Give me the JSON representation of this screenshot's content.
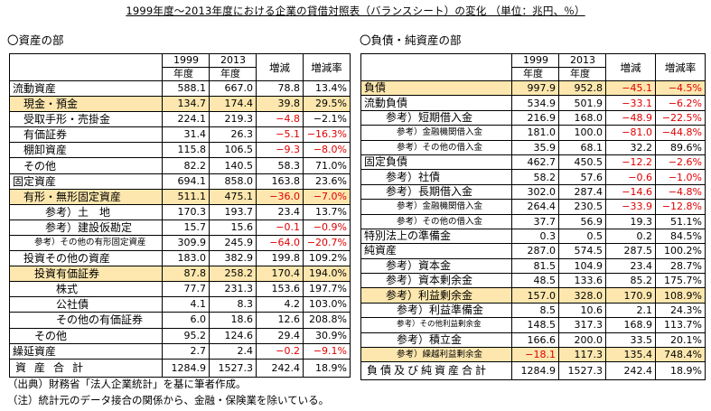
{
  "title": "1999年度～2013年度における企業の貸借対照表（バランスシート）の変化 （単位：兆円、％）",
  "left": {
    "section_title": "〇資産の部",
    "header": {
      "col1_line1": "1999",
      "col1_line2": "年度",
      "col2_line1": "2013",
      "col2_line2": "年度",
      "col3": "増減",
      "col4": "増減率"
    },
    "rows": [
      {
        "label": "流動資産",
        "indent": 0,
        "v1": "588.1",
        "v2": "667.0",
        "v3": "78.8",
        "v4": "13.4%",
        "hl": false
      },
      {
        "label": "現金・預金",
        "indent": 1,
        "v1": "134.7",
        "v2": "174.4",
        "v3": "39.8",
        "v4": "29.5%",
        "hl": true
      },
      {
        "label": "受取手形・売掛金",
        "indent": 1,
        "v1": "224.1",
        "v2": "219.3",
        "v3": "−4.8",
        "v4": "−2.1%",
        "hl": false,
        "neg3": true
      },
      {
        "label": "有価証券",
        "indent": 1,
        "v1": "31.4",
        "v2": "26.3",
        "v3": "−5.1",
        "v4": "−16.3%",
        "hl": false,
        "neg3": true,
        "neg4": true
      },
      {
        "label": "棚卸資産",
        "indent": 1,
        "v1": "115.8",
        "v2": "106.5",
        "v3": "−9.3",
        "v4": "−8.0%",
        "hl": false,
        "neg3": true,
        "neg4": true
      },
      {
        "label": "その他",
        "indent": 1,
        "v1": "82.2",
        "v2": "140.5",
        "v3": "58.3",
        "v4": "71.0%",
        "hl": false
      },
      {
        "label": "固定資産",
        "indent": 0,
        "v1": "694.1",
        "v2": "858.0",
        "v3": "163.8",
        "v4": "23.6%",
        "hl": false
      },
      {
        "label": "有形・無形固定資産",
        "indent": 1,
        "v1": "511.1",
        "v2": "475.1",
        "v3": "−36.0",
        "v4": "−7.0%",
        "hl": true,
        "neg3": true,
        "neg4": true
      },
      {
        "label": "参考）土　地",
        "indent": 3,
        "v1": "170.3",
        "v2": "193.7",
        "v3": "23.4",
        "v4": "13.7%",
        "hl": false
      },
      {
        "label": "参考）建設仮勘定",
        "indent": 3,
        "v1": "15.7",
        "v2": "15.6",
        "v3": "−0.1",
        "v4": "−0.9%",
        "hl": false,
        "neg3": true,
        "neg4": true
      },
      {
        "label": "参考）その他の有形固定資産",
        "indent": 2,
        "v1": "309.9",
        "v2": "245.9",
        "v3": "−64.0",
        "v4": "−20.7%",
        "hl": false,
        "neg3": true,
        "neg4": true,
        "small": true
      },
      {
        "label": "投資その他の資産",
        "indent": 1,
        "v1": "183.0",
        "v2": "382.9",
        "v3": "199.8",
        "v4": "109.2%",
        "hl": false
      },
      {
        "label": "投資有価証券",
        "indent": 2,
        "v1": "87.8",
        "v2": "258.2",
        "v3": "170.4",
        "v4": "194.0%",
        "hl": true
      },
      {
        "label": "株式",
        "indent": 4,
        "v1": "77.7",
        "v2": "231.3",
        "v3": "153.6",
        "v4": "197.7%",
        "hl": false
      },
      {
        "label": "公社債",
        "indent": 4,
        "v1": "4.1",
        "v2": "8.3",
        "v3": "4.2",
        "v4": "103.0%",
        "hl": false
      },
      {
        "label": "その他の有価証券",
        "indent": 4,
        "v1": "6.0",
        "v2": "18.6",
        "v3": "12.6",
        "v4": "208.8%",
        "hl": false
      },
      {
        "label": "その他",
        "indent": 2,
        "v1": "95.2",
        "v2": "124.6",
        "v3": "29.4",
        "v4": "30.9%",
        "hl": false
      },
      {
        "label": "繰延資産",
        "indent": 0,
        "v1": "2.7",
        "v2": "2.4",
        "v3": "−0.2",
        "v4": "−9.1%",
        "hl": false,
        "neg3": true,
        "neg4": true
      }
    ],
    "total": {
      "label": "資産合計",
      "v1": "1284.9",
      "v2": "1527.3",
      "v3": "242.4",
      "v4": "18.9%"
    }
  },
  "right": {
    "section_title": "〇負債・純資産の部",
    "header": {
      "col1_line1": "1999",
      "col1_line2": "年度",
      "col2_line1": "2013",
      "col2_line2": "年度",
      "col3": "増減",
      "col4": "増減率"
    },
    "rows": [
      {
        "label": "負債",
        "indent": 0,
        "v1": "997.9",
        "v2": "952.8",
        "v3": "−45.1",
        "v4": "−4.5%",
        "hl": true,
        "neg3": true,
        "neg4": true
      },
      {
        "label": "流動負債",
        "indent": 0,
        "v1": "534.9",
        "v2": "501.9",
        "v3": "−33.1",
        "v4": "−6.2%",
        "hl": false,
        "neg3": true,
        "neg4": true
      },
      {
        "label": "参考）短期借入金",
        "indent": 2,
        "v1": "216.9",
        "v2": "168.0",
        "v3": "−48.9",
        "v4": "−22.5%",
        "hl": false,
        "neg3": true,
        "neg4": true
      },
      {
        "label": "参考）金融機関借入金",
        "indent": 3,
        "v1": "181.0",
        "v2": "100.0",
        "v3": "−81.0",
        "v4": "−44.8%",
        "hl": false,
        "neg3": true,
        "neg4": true,
        "small": true
      },
      {
        "label": "参考）その他の借入金",
        "indent": 3,
        "v1": "35.9",
        "v2": "68.1",
        "v3": "32.2",
        "v4": "89.6%",
        "hl": false,
        "small": true
      },
      {
        "label": "固定負債",
        "indent": 0,
        "v1": "462.7",
        "v2": "450.5",
        "v3": "−12.2",
        "v4": "−2.6%",
        "hl": false,
        "neg3": true,
        "neg4": true
      },
      {
        "label": "参考）社債",
        "indent": 2,
        "v1": "58.2",
        "v2": "57.6",
        "v3": "−0.6",
        "v4": "−1.0%",
        "hl": false,
        "neg3": true,
        "neg4": true
      },
      {
        "label": "参考）長期借入金",
        "indent": 2,
        "v1": "302.0",
        "v2": "287.4",
        "v3": "−14.6",
        "v4": "−4.8%",
        "hl": false,
        "neg3": true,
        "neg4": true
      },
      {
        "label": "参考）金融機関借入金",
        "indent": 3,
        "v1": "264.4",
        "v2": "230.5",
        "v3": "−33.9",
        "v4": "−12.8%",
        "hl": false,
        "neg3": true,
        "neg4": true,
        "small": true
      },
      {
        "label": "参考）その他の借入金",
        "indent": 3,
        "v1": "37.7",
        "v2": "56.9",
        "v3": "19.3",
        "v4": "51.1%",
        "hl": false,
        "small": true
      },
      {
        "label": "特別法上の準備金",
        "indent": 0,
        "v1": "0.3",
        "v2": "0.5",
        "v3": "0.2",
        "v4": "84.5%",
        "hl": false
      },
      {
        "label": "純資産",
        "indent": 0,
        "v1": "287.0",
        "v2": "574.5",
        "v3": "287.5",
        "v4": "100.2%",
        "hl": false
      },
      {
        "label": "参考）資本金",
        "indent": 2,
        "v1": "81.5",
        "v2": "104.9",
        "v3": "23.4",
        "v4": "28.7%",
        "hl": false
      },
      {
        "label": "参考）資本剰余金",
        "indent": 2,
        "v1": "48.5",
        "v2": "133.6",
        "v3": "85.2",
        "v4": "175.7%",
        "hl": false
      },
      {
        "label": "参考）利益剰余金",
        "indent": 2,
        "v1": "157.0",
        "v2": "328.0",
        "v3": "170.9",
        "v4": "108.9%",
        "hl": true
      },
      {
        "label": "参考）利益準備金",
        "indent": 3,
        "v1": "8.5",
        "v2": "10.6",
        "v3": "2.1",
        "v4": "24.3%",
        "hl": false
      },
      {
        "label": "参考）その他利益剰余金",
        "indent": 3,
        "v1": "148.5",
        "v2": "317.3",
        "v3": "168.9",
        "v4": "113.7%",
        "hl": false,
        "xsmall": true
      },
      {
        "label": "参考）積立金",
        "indent": 3,
        "v1": "166.6",
        "v2": "200.0",
        "v3": "33.5",
        "v4": "20.1%",
        "hl": false
      },
      {
        "label": "参考）繰越利益剰余金",
        "indent": 3,
        "v1": "−18.1",
        "v2": "117.3",
        "v3": "135.4",
        "v4": "748.4%",
        "hl": true,
        "neg1": true,
        "small": true
      }
    ],
    "total": {
      "label": "負債及び純資産合計",
      "v1": "1284.9",
      "v2": "1527.3",
      "v3": "242.4",
      "v4": "18.9%"
    }
  },
  "notes": {
    "source": "（出典）財務省「法人企業統計」を基に筆者作成。",
    "note": "（注）統計元のデータ接合の関係から、金融・保険業を除いている。"
  }
}
